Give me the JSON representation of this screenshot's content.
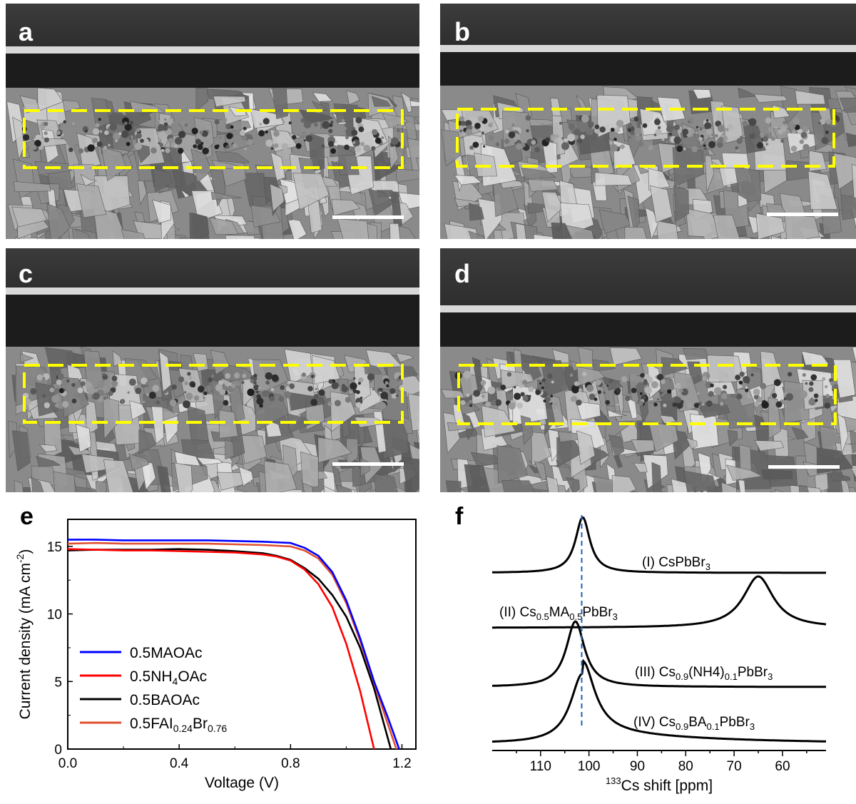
{
  "sem_panels": [
    {
      "id": "a",
      "label": "a"
    },
    {
      "id": "b",
      "label": "b"
    },
    {
      "id": "c",
      "label": "c"
    },
    {
      "id": "d",
      "label": "d"
    }
  ],
  "colors": {
    "highlight_box": "#ffff00",
    "scale_bar": "#ffffff",
    "sem_dark": "#2a2a2a",
    "sem_light": "#b8b8b8"
  },
  "chart_data": [
    {
      "panel_label": "e",
      "type": "line",
      "xlabel": "Voltage (V)",
      "ylabel": "Current density (mA cm",
      "ylabel_sup": "-2",
      "ylabel_end": ")",
      "xlim": [
        0.0,
        1.25
      ],
      "ylim": [
        0,
        17
      ],
      "xticks": [
        0.0,
        0.4,
        0.8,
        1.2
      ],
      "xtick_labels": [
        "0.0",
        "0.4",
        "0.8",
        "1.2"
      ],
      "yticks": [
        0,
        5,
        10,
        15
      ],
      "ytick_labels": [
        "0",
        "5",
        "10",
        "15"
      ],
      "legend_position": "bottom-left",
      "series": [
        {
          "name_main": "0.5MAOAc",
          "name_parts": [
            [
              "0.5MAOAc",
              ""
            ]
          ],
          "color": "#0000ff",
          "x": [
            0.0,
            0.1,
            0.2,
            0.3,
            0.4,
            0.5,
            0.6,
            0.7,
            0.8,
            0.85,
            0.9,
            0.95,
            1.0,
            1.05,
            1.1,
            1.15,
            1.19
          ],
          "values": [
            15.5,
            15.5,
            15.45,
            15.45,
            15.45,
            15.45,
            15.4,
            15.35,
            15.25,
            14.9,
            14.3,
            13.1,
            11.0,
            8.2,
            5.0,
            2.3,
            0
          ]
        },
        {
          "name_main": "0.5NH4OAc",
          "name_parts": [
            [
              "0.5NH",
              ""
            ],
            [
              "4",
              "sub"
            ],
            [
              "OAc",
              ""
            ]
          ],
          "color": "#ff0000",
          "x": [
            0.0,
            0.1,
            0.2,
            0.3,
            0.4,
            0.5,
            0.6,
            0.7,
            0.75,
            0.8,
            0.85,
            0.9,
            0.95,
            1.0,
            1.05,
            1.1
          ],
          "values": [
            14.8,
            14.75,
            14.7,
            14.7,
            14.65,
            14.6,
            14.55,
            14.4,
            14.25,
            13.95,
            13.3,
            12.2,
            10.5,
            7.8,
            4.3,
            0
          ]
        },
        {
          "name_main": "0.5BAOAc",
          "name_parts": [
            [
              "0.5BAOAc",
              ""
            ]
          ],
          "color": "#000000",
          "x": [
            0.0,
            0.1,
            0.2,
            0.3,
            0.4,
            0.5,
            0.6,
            0.7,
            0.75,
            0.8,
            0.85,
            0.9,
            0.95,
            1.0,
            1.05,
            1.1,
            1.16
          ],
          "values": [
            14.7,
            14.75,
            14.75,
            14.75,
            14.8,
            14.75,
            14.65,
            14.5,
            14.3,
            14.0,
            13.4,
            12.6,
            11.4,
            9.8,
            7.5,
            4.5,
            0
          ]
        },
        {
          "name_main": "0.5FAI0.24Br0.76",
          "name_parts": [
            [
              "0.5FAI",
              ""
            ],
            [
              "0.24",
              "sub"
            ],
            [
              "Br",
              ""
            ],
            [
              "0.76",
              "sub"
            ]
          ],
          "color": "#e05030",
          "x": [
            0.0,
            0.1,
            0.2,
            0.3,
            0.4,
            0.5,
            0.6,
            0.7,
            0.8,
            0.85,
            0.9,
            0.95,
            1.0,
            1.05,
            1.1,
            1.15,
            1.18
          ],
          "values": [
            15.2,
            15.25,
            15.2,
            15.2,
            15.2,
            15.2,
            15.15,
            15.1,
            15.0,
            14.7,
            14.1,
            12.9,
            10.8,
            8.0,
            4.9,
            1.8,
            0
          ]
        }
      ]
    },
    {
      "panel_label": "f",
      "type": "line",
      "xlabel_sup": "133",
      "xlabel": "Cs shift [ppm]",
      "xlim": [
        120,
        51
      ],
      "xticks": [
        110,
        100,
        90,
        80,
        70,
        60
      ],
      "xtick_labels": [
        "110",
        "100",
        "90",
        "80",
        "70",
        "60"
      ],
      "reference_line_x": 101.5,
      "reference_line_color": "#1f5fbf",
      "series": [
        {
          "label_parts": [
            [
              "(I) CsPbBr",
              ""
            ],
            [
              "3",
              "sub"
            ]
          ],
          "peak_center": 101.3,
          "peak_width": 1.8,
          "peak_height": 1.0,
          "tail": 0
        },
        {
          "label_parts": [
            [
              "(II) Cs",
              ""
            ],
            [
              "0.5",
              "sub"
            ],
            [
              "MA",
              ""
            ],
            [
              "0.5",
              "sub"
            ],
            [
              "PbBr",
              ""
            ],
            [
              "3",
              "sub"
            ]
          ],
          "peak_center": 65.0,
          "peak_width": 3.8,
          "peak_height": 1.0,
          "tail": 0
        },
        {
          "label_parts": [
            [
              "(III) Cs",
              ""
            ],
            [
              "0.9",
              "sub"
            ],
            [
              "(NH4)",
              ""
            ],
            [
              "0.1",
              "sub"
            ],
            [
              "PbBr",
              ""
            ],
            [
              "3",
              "sub"
            ]
          ],
          "peak_center": 102.8,
          "peak_width": 2.3,
          "peak_height": 1.0,
          "tail": 0
        },
        {
          "label_parts": [
            [
              "(IV) Cs",
              ""
            ],
            [
              "0.9",
              "sub"
            ],
            [
              "BA",
              ""
            ],
            [
              "0.1",
              "sub"
            ],
            [
              "PbBr",
              ""
            ],
            [
              "3",
              "sub"
            ]
          ],
          "peak_center": 101.3,
          "peak_width": 3.0,
          "peak_height": 1.0,
          "tail": 0.18
        }
      ]
    }
  ]
}
